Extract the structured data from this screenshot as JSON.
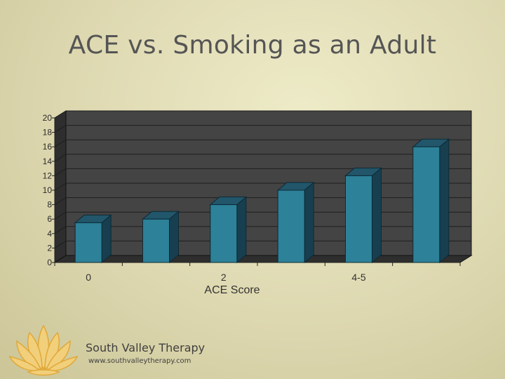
{
  "slide": {
    "title": "ACE vs. Smoking as an Adult"
  },
  "footer": {
    "company": "South Valley Therapy",
    "website": "www.southvalleytherapy.com"
  },
  "colors": {
    "bar_front": "#2d8198",
    "bar_top": "#22566a",
    "bar_side": "#173f4f",
    "plot_back": "#444444",
    "plot_floor": "#2e2e2e",
    "grid": "#1e1e1e"
  },
  "chart_data": {
    "type": "bar",
    "title": "ACE vs. Smoking as an Adult",
    "xlabel": "ACE Score",
    "ylabel": "",
    "categories": [
      "0",
      "",
      "2",
      "",
      "4-5",
      ""
    ],
    "values": [
      5.5,
      6,
      8,
      10,
      12,
      16
    ],
    "ylim": [
      0,
      20
    ],
    "yticks": [
      0,
      2,
      4,
      6,
      8,
      10,
      12,
      14,
      16,
      18,
      20
    ],
    "grid": true,
    "legend": "none",
    "three_d": true
  }
}
